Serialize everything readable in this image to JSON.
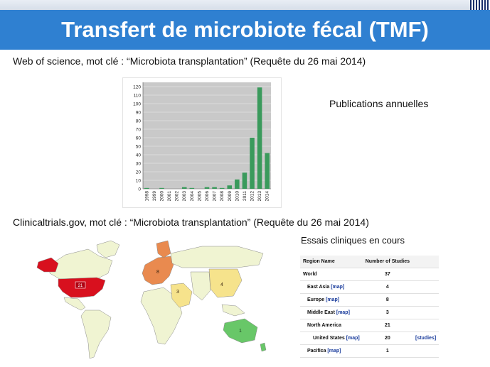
{
  "slide": {
    "title": "Transfert de microbiote fécal (TMF)",
    "wos_line": "Web of science, mot clé : “Microbiota transplantation”  (Requête du 26 mai 2014)",
    "pub_label": "Publications annuelles",
    "ct_line": "Clinicaltrials.gov, mot clé : “Microbiota transplantation”  (Requête du 26 mai 2014)",
    "essais_label": "Essais cliniques en cours",
    "colors": {
      "title_bg": "#2f80d1",
      "bar": "#3a9a5c",
      "chart_bg": "#c9c9c9"
    }
  },
  "chart_data": {
    "type": "bar",
    "categories": [
      "1998",
      "1999",
      "2000",
      "2001",
      "2002",
      "2003",
      "2004",
      "2005",
      "2006",
      "2007",
      "2008",
      "2009",
      "2010",
      "2011",
      "2012",
      "2013",
      "2014"
    ],
    "values": [
      1,
      0,
      1,
      0,
      0,
      2,
      1,
      0,
      2,
      2,
      1,
      4,
      11,
      19,
      60,
      119,
      42
    ],
    "yticks": [
      0,
      10,
      20,
      30,
      40,
      50,
      60,
      70,
      80,
      90,
      100,
      110,
      120
    ],
    "ylim": [
      0,
      125
    ],
    "grid": true
  },
  "map": {
    "labels": [
      {
        "region": "north-america",
        "count": "21"
      },
      {
        "region": "europe",
        "count": "8"
      },
      {
        "region": "middle-east",
        "count": "3"
      },
      {
        "region": "east-asia",
        "count": "4"
      },
      {
        "region": "pacifica",
        "count": "1"
      }
    ]
  },
  "table": {
    "headers": [
      "Region Name",
      "Number of Studies"
    ],
    "map_link": "[map]",
    "studies_link": "[studies]",
    "rows": [
      {
        "name": "World",
        "count": "37"
      },
      {
        "name": "East Asia",
        "count": "4"
      },
      {
        "name": "Europe",
        "count": "8"
      },
      {
        "name": "Middle East",
        "count": "3"
      },
      {
        "name": "North America",
        "count": "21"
      },
      {
        "name": "United States",
        "count": "20"
      },
      {
        "name": "Pacifica",
        "count": "1"
      }
    ]
  }
}
